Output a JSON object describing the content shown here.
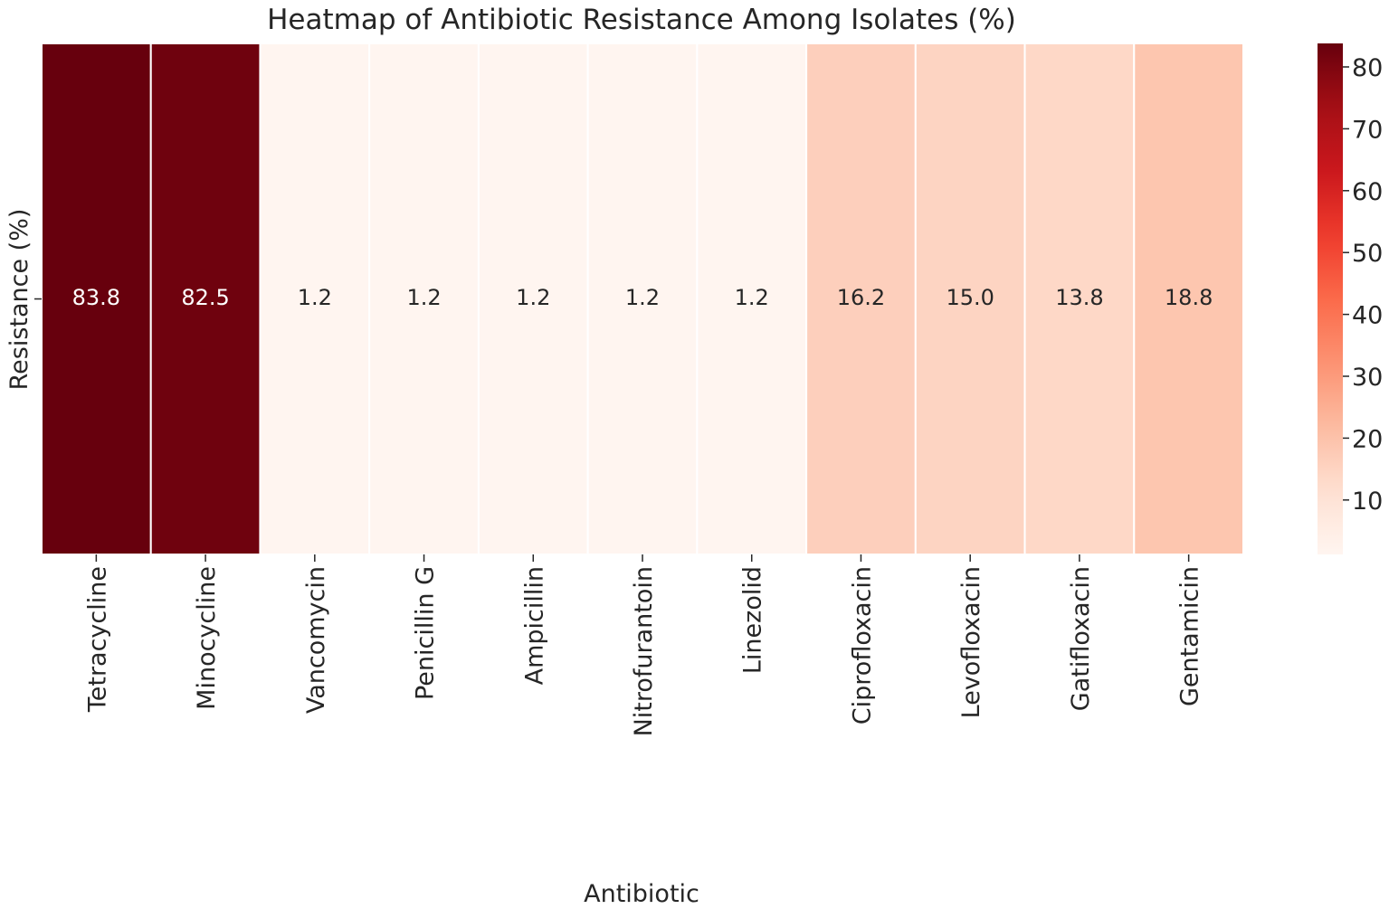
{
  "chart_data": {
    "type": "heatmap",
    "title": "Heatmap of Antibiotic Resistance Among Isolates (%)",
    "xlabel": "Antibiotic",
    "ylabel": "Resistance (%)",
    "categories": [
      "Tetracycline",
      "Minocycline",
      "Vancomycin",
      "Penicillin G",
      "Ampicillin",
      "Nitrofurantoin",
      "Linezolid",
      "Ciprofloxacin",
      "Levofloxacin",
      "Gatifloxacin",
      "Gentamicin"
    ],
    "values": [
      83.8,
      82.5,
      1.2,
      1.2,
      1.2,
      1.2,
      1.2,
      16.2,
      15.0,
      13.8,
      18.8
    ],
    "value_labels": [
      "83.8",
      "82.5",
      "1.2",
      "1.2",
      "1.2",
      "1.2",
      "1.2",
      "16.2",
      "15.0",
      "13.8",
      "18.8"
    ],
    "colormap": "Reds",
    "colorbar": {
      "range": [
        1.2,
        83.8
      ],
      "ticks": [
        10,
        20,
        30,
        40,
        50,
        60,
        70,
        80
      ]
    },
    "grid": false,
    "legend": "colorbar-right"
  }
}
